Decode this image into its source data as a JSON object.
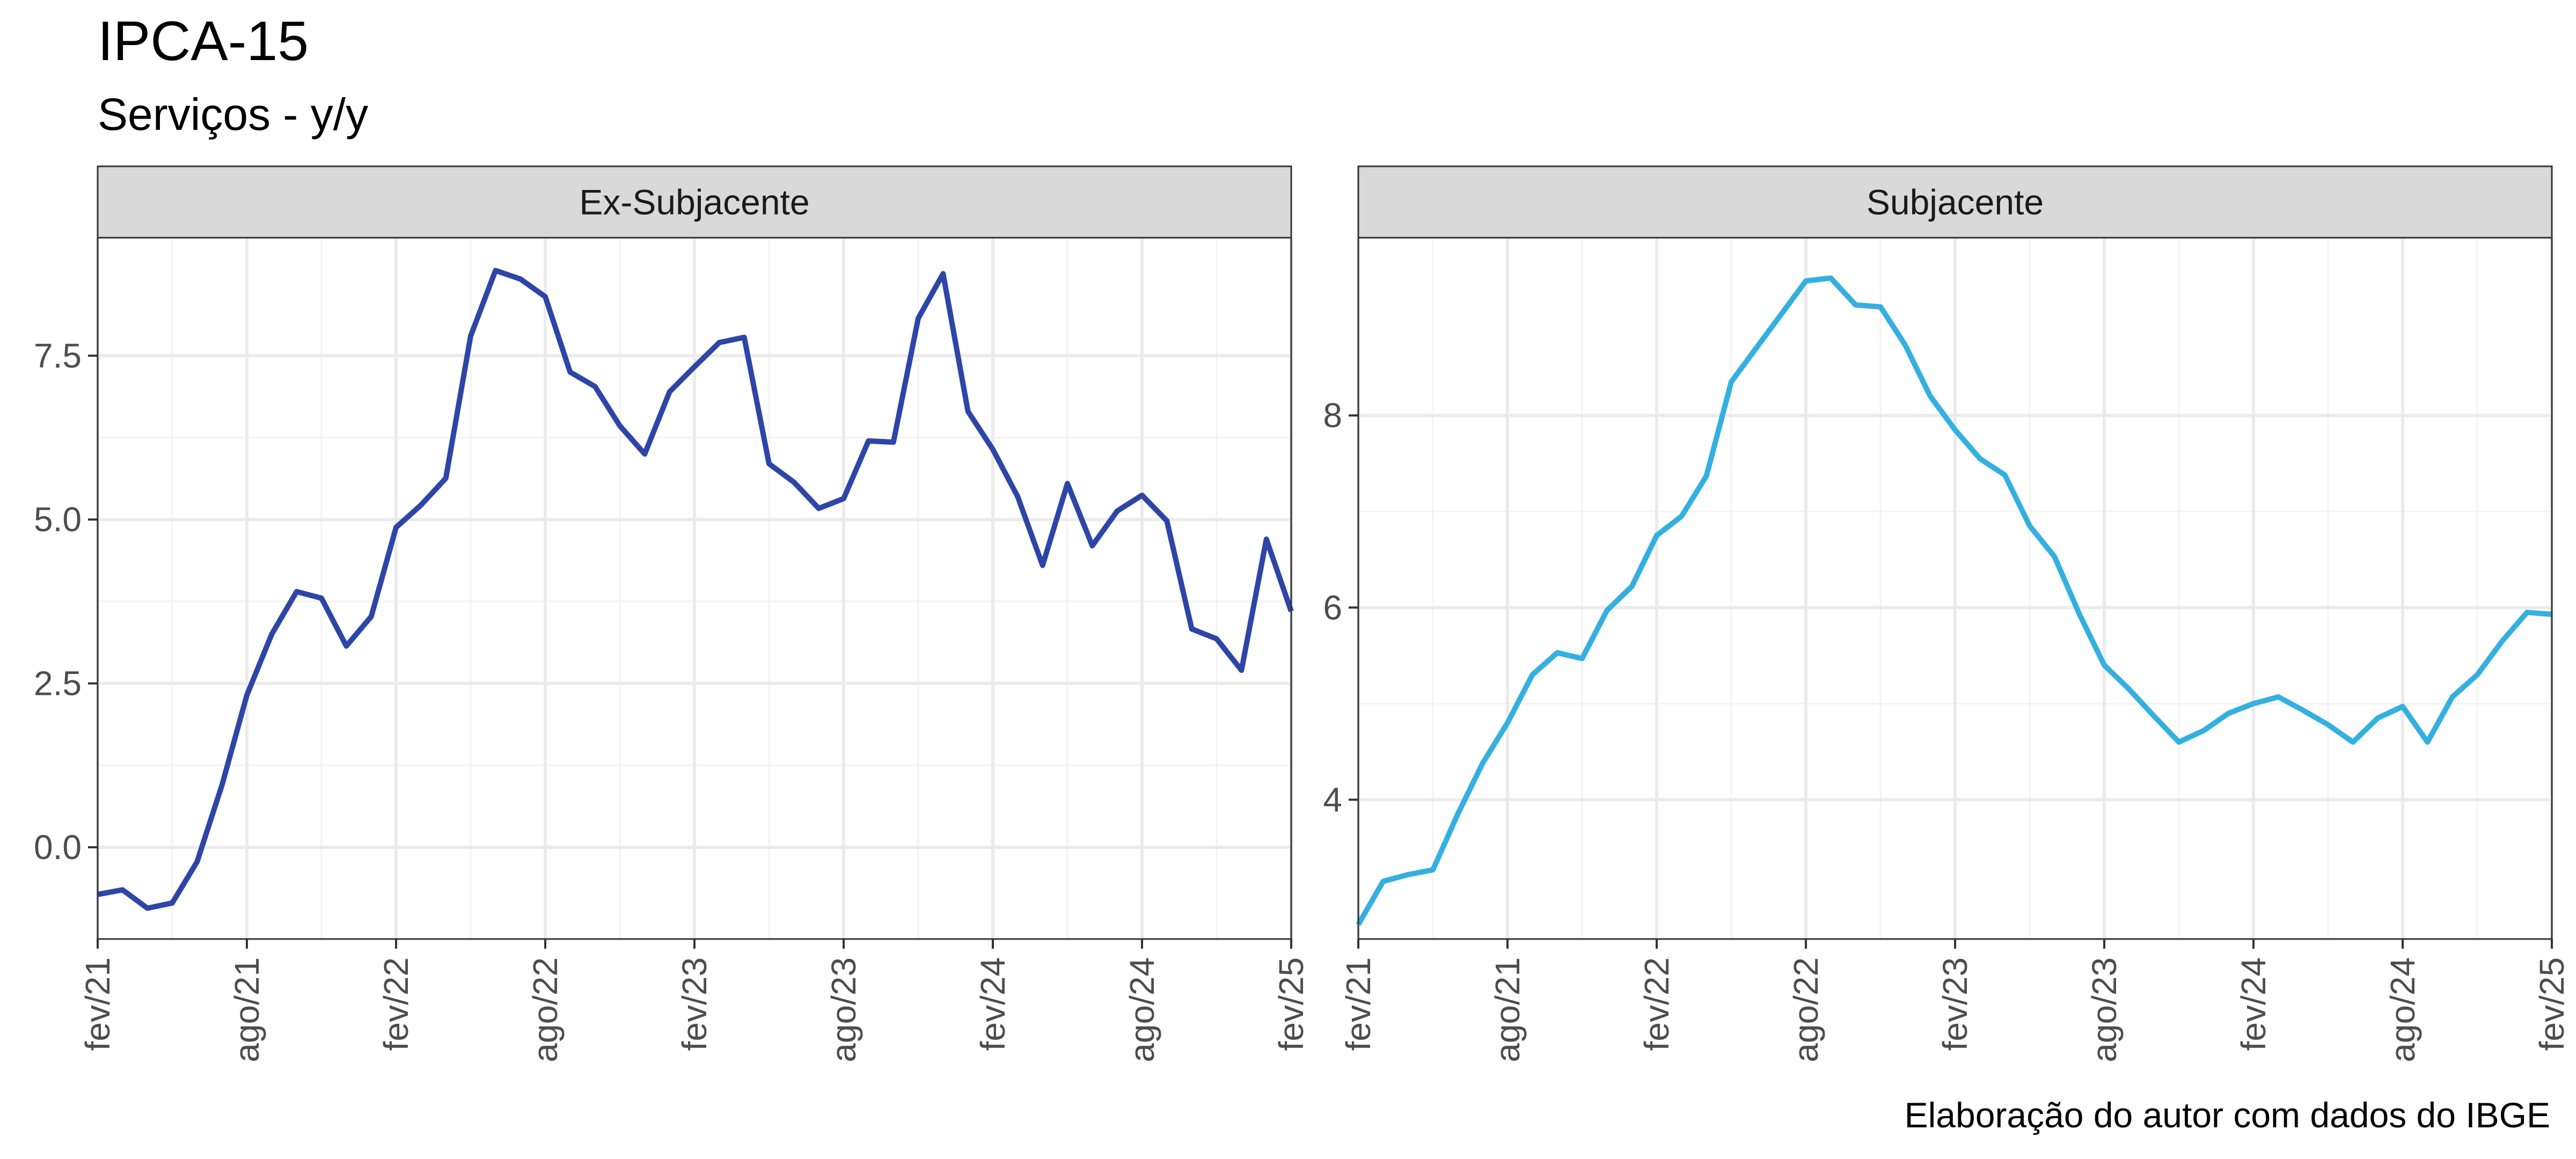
{
  "title": "IPCA-15",
  "subtitle": "Serviços - y/y",
  "caption": "Elaboração do autor com dados do IBGE",
  "colors": {
    "ex_subjacente": "#2E45A8",
    "subjacente": "#34B0E0",
    "strip_fill": "#D9D9D9",
    "grid": "#EBEBEB",
    "border": "#333333"
  },
  "chart_data": [
    {
      "type": "line",
      "panel": "Ex-Subjacente",
      "x_tick_labels": [
        "fev/21",
        "ago/21",
        "fev/22",
        "ago/22",
        "fev/23",
        "ago/23",
        "fev/24",
        "ago/24",
        "fev/25"
      ],
      "x_ticks": [
        "2021-02",
        "2021-08",
        "2022-02",
        "2022-08",
        "2023-02",
        "2023-08",
        "2024-02",
        "2024-08",
        "2025-02"
      ],
      "y_tick_labels": [
        "0.0",
        "2.5",
        "5.0",
        "7.5"
      ],
      "y_ticks": [
        0.0,
        2.5,
        5.0,
        7.5
      ],
      "xlim": [
        "2021-02",
        "2025-02"
      ],
      "ylim": [
        -1.4,
        9.3
      ],
      "grid": true,
      "x": [
        "2021-02",
        "2021-03",
        "2021-04",
        "2021-05",
        "2021-06",
        "2021-07",
        "2021-08",
        "2021-09",
        "2021-10",
        "2021-11",
        "2021-12",
        "2022-01",
        "2022-02",
        "2022-03",
        "2022-04",
        "2022-05",
        "2022-06",
        "2022-07",
        "2022-08",
        "2022-09",
        "2022-10",
        "2022-11",
        "2022-12",
        "2023-01",
        "2023-02",
        "2023-03",
        "2023-04",
        "2023-05",
        "2023-06",
        "2023-07",
        "2023-08",
        "2023-09",
        "2023-10",
        "2023-11",
        "2023-12",
        "2024-01",
        "2024-02",
        "2024-03",
        "2024-04",
        "2024-05",
        "2024-06",
        "2024-07",
        "2024-08",
        "2024-09",
        "2024-10",
        "2024-11",
        "2024-12",
        "2025-01",
        "2025-02"
      ],
      "y": [
        -0.72,
        -0.65,
        -0.93,
        -0.85,
        -0.22,
        0.95,
        2.32,
        3.25,
        3.9,
        3.8,
        3.07,
        3.52,
        4.88,
        5.22,
        5.63,
        7.8,
        8.8,
        8.67,
        8.4,
        7.25,
        7.03,
        6.43,
        6.0,
        6.95,
        7.33,
        7.7,
        7.78,
        5.85,
        5.57,
        5.17,
        5.32,
        6.2,
        6.18,
        8.07,
        8.75,
        6.65,
        6.07,
        5.35,
        4.3,
        5.55,
        4.6,
        5.13,
        5.37,
        4.98,
        3.33,
        3.18,
        2.7,
        4.7,
        3.6
      ]
    },
    {
      "type": "line",
      "panel": "Subjacente",
      "x_tick_labels": [
        "fev/21",
        "ago/21",
        "fev/22",
        "ago/22",
        "fev/23",
        "ago/23",
        "fev/24",
        "ago/24",
        "fev/25"
      ],
      "x_ticks": [
        "2021-02",
        "2021-08",
        "2022-02",
        "2022-08",
        "2023-02",
        "2023-08",
        "2024-02",
        "2024-08",
        "2025-02"
      ],
      "y_tick_labels": [
        "4",
        "6",
        "8"
      ],
      "y_ticks": [
        4,
        6,
        8
      ],
      "xlim": [
        "2021-02",
        "2025-02"
      ],
      "ylim": [
        2.55,
        9.85
      ],
      "grid": true,
      "x": [
        "2021-02",
        "2021-03",
        "2021-04",
        "2021-05",
        "2021-06",
        "2021-07",
        "2021-08",
        "2021-09",
        "2021-10",
        "2021-11",
        "2021-12",
        "2022-01",
        "2022-02",
        "2022-03",
        "2022-04",
        "2022-05",
        "2022-06",
        "2022-07",
        "2022-08",
        "2022-09",
        "2022-10",
        "2022-11",
        "2022-12",
        "2023-01",
        "2023-02",
        "2023-03",
        "2023-04",
        "2023-05",
        "2023-06",
        "2023-07",
        "2023-08",
        "2023-09",
        "2023-10",
        "2023-11",
        "2023-12",
        "2024-01",
        "2024-02",
        "2024-03",
        "2024-04",
        "2024-05",
        "2024-06",
        "2024-07",
        "2024-08",
        "2024-09",
        "2024-10",
        "2024-11",
        "2024-12",
        "2025-01",
        "2025-02"
      ],
      "y": [
        2.7,
        3.15,
        3.22,
        3.27,
        3.85,
        4.38,
        4.8,
        5.3,
        5.53,
        5.47,
        5.97,
        6.22,
        6.75,
        6.95,
        7.37,
        8.35,
        8.7,
        9.05,
        9.4,
        9.43,
        9.15,
        9.13,
        8.73,
        8.2,
        7.85,
        7.55,
        7.38,
        6.85,
        6.53,
        5.93,
        5.4,
        5.15,
        4.87,
        4.6,
        4.72,
        4.9,
        5.0,
        5.07,
        4.93,
        4.78,
        4.6,
        4.85,
        4.97,
        4.6,
        5.07,
        5.3,
        5.65,
        5.95,
        5.93
      ]
    }
  ]
}
